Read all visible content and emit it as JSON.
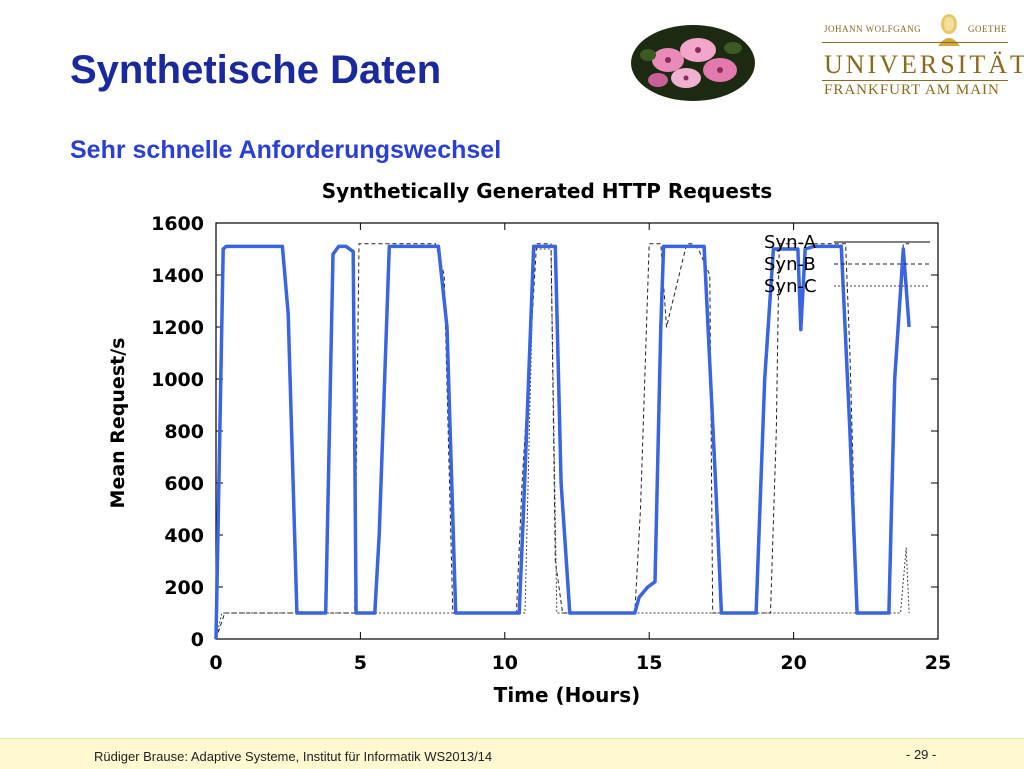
{
  "slide": {
    "title": "Synthetische Daten",
    "subtitle": "Sehr schnelle Anforderungswechsel"
  },
  "logo": {
    "top_left": "JOHANN WOLFGANG",
    "top_right": "GOETHE",
    "name": "UNIVERSITÄT",
    "city": "FRANKFURT AM MAIN",
    "color": "#8a6a1e"
  },
  "footer": {
    "text": "Rüdiger Brause: Adaptive Systeme, Institut für Informatik WS2013/14",
    "page": "- 29 -"
  },
  "chart_data": {
    "type": "line",
    "title": "Synthetically Generated HTTP Requests",
    "xlabel": "Time (Hours)",
    "ylabel": "Mean Request/s",
    "xlim": [
      0,
      25
    ],
    "ylim": [
      0,
      1600
    ],
    "xticks": [
      0,
      5,
      10,
      15,
      20,
      25
    ],
    "yticks": [
      0,
      200,
      400,
      600,
      800,
      1000,
      1200,
      1400,
      1600
    ],
    "grid": false,
    "legend_position": "top-right",
    "series": [
      {
        "name": "Syn-A",
        "color": "#3a64e0",
        "style": "solid-thick",
        "x": [
          0,
          0.25,
          0.35,
          2.3,
          2.5,
          2.8,
          3.8,
          4.05,
          4.25,
          4.5,
          4.75,
          4.85,
          5.5,
          5.65,
          6.0,
          7.7,
          8.0,
          8.3,
          10.5,
          10.65,
          11.0,
          11.75,
          11.95,
          12.25,
          14.5,
          14.65,
          14.95,
          15.2,
          15.4,
          15.5,
          16.9,
          17.3,
          17.5,
          18.7,
          19.0,
          19.3,
          20.15,
          20.25,
          20.4,
          20.7,
          21.65,
          21.95,
          22.2,
          23.3,
          23.5,
          23.8,
          24.0
        ],
        "y": [
          0,
          1500,
          1510,
          1510,
          1250,
          100,
          100,
          1480,
          1510,
          1510,
          1490,
          100,
          100,
          400,
          1510,
          1510,
          1200,
          100,
          100,
          500,
          1510,
          1510,
          600,
          100,
          100,
          160,
          200,
          220,
          1200,
          1510,
          1510,
          600,
          100,
          100,
          1000,
          1500,
          1500,
          1190,
          1500,
          1510,
          1510,
          800,
          100,
          100,
          1000,
          1500,
          1200
        ]
      },
      {
        "name": "Syn-B",
        "color": "#222222",
        "style": "dashed",
        "x": [
          0,
          0.3,
          4.8,
          4.95,
          7.6,
          7.9,
          8.2,
          10.4,
          10.6,
          11.1,
          11.6,
          11.75,
          12.0,
          14.5,
          14.7,
          15.0,
          15.4,
          15.6,
          16.3,
          16.5,
          16.7,
          17.1,
          17.2,
          19.2,
          19.4,
          19.5,
          21.8,
          21.95,
          22.2,
          23.3,
          23.5,
          23.8,
          24.0
        ],
        "y": [
          0,
          100,
          100,
          1520,
          1520,
          1400,
          100,
          100,
          600,
          1520,
          1520,
          300,
          100,
          100,
          500,
          1520,
          1520,
          1200,
          1520,
          1520,
          1500,
          1400,
          100,
          100,
          800,
          1520,
          1520,
          1100,
          100,
          100,
          1000,
          1520,
          1520
        ]
      },
      {
        "name": "Syn-C",
        "color": "#444444",
        "style": "dotted",
        "x": [
          0,
          0.2,
          2.3,
          2.6,
          4.7,
          4.9,
          8.1,
          8.3,
          10.5,
          10.7,
          11.0,
          11.6,
          11.8,
          12.2,
          14.3,
          14.5,
          16.7,
          16.9,
          19.1,
          19.3,
          21.4,
          21.6,
          23.7,
          23.9,
          24.0
        ],
        "y": [
          0,
          100,
          100,
          100,
          100,
          100,
          100,
          100,
          100,
          100,
          1500,
          1500,
          100,
          100,
          100,
          100,
          100,
          100,
          100,
          100,
          100,
          100,
          100,
          350,
          100
        ]
      }
    ]
  }
}
